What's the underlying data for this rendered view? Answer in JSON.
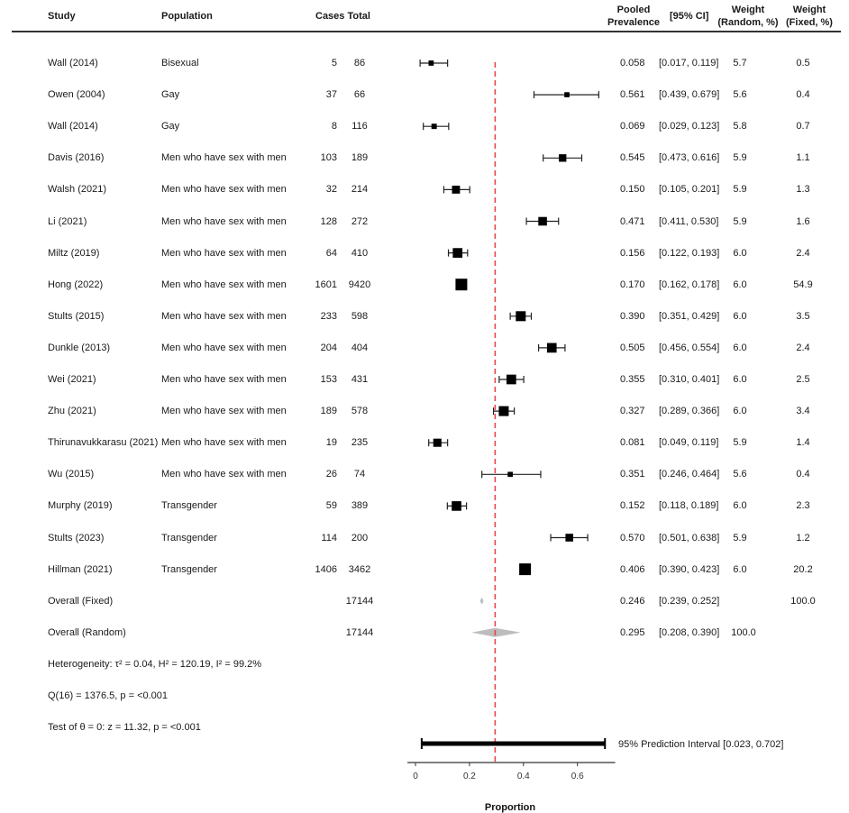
{
  "headers": {
    "study": "Study",
    "population": "Population",
    "cases_total": "Cases Total",
    "pooled_1": "Pooled",
    "pooled_2": "Prevalence",
    "ci": "[95% CI]",
    "wr_1": "Weight",
    "wr_2": "(Random, %)",
    "wf_1": "Weight",
    "wf_2": "(Fixed, %)"
  },
  "colors": {
    "reference_line": "#e8474c",
    "marker": "#000000",
    "summary_diamond": "#bdbdbd"
  },
  "studies": [
    {
      "study": "Wall (2014)",
      "population": "Bisexual",
      "cases": "5",
      "total": "86",
      "prev": "0.058",
      "ci": "[0.017, 0.119]",
      "w_random": "5.7",
      "w_fixed": "0.5"
    },
    {
      "study": "Owen (2004)",
      "population": "Gay",
      "cases": "37",
      "total": "66",
      "prev": "0.561",
      "ci": "[0.439, 0.679]",
      "w_random": "5.6",
      "w_fixed": "0.4"
    },
    {
      "study": "Wall (2014)",
      "population": "Gay",
      "cases": "8",
      "total": "116",
      "prev": "0.069",
      "ci": "[0.029, 0.123]",
      "w_random": "5.8",
      "w_fixed": "0.7"
    },
    {
      "study": "Davis (2016)",
      "population": "Men who have sex with men",
      "cases": "103",
      "total": "189",
      "prev": "0.545",
      "ci": "[0.473, 0.616]",
      "w_random": "5.9",
      "w_fixed": "1.1"
    },
    {
      "study": "Walsh (2021)",
      "population": "Men who have sex with men",
      "cases": "32",
      "total": "214",
      "prev": "0.150",
      "ci": "[0.105, 0.201]",
      "w_random": "5.9",
      "w_fixed": "1.3"
    },
    {
      "study": "Li (2021)",
      "population": "Men who have sex with men",
      "cases": "128",
      "total": "272",
      "prev": "0.471",
      "ci": "[0.411, 0.530]",
      "w_random": "5.9",
      "w_fixed": "1.6"
    },
    {
      "study": "Miltz (2019)",
      "population": "Men who have sex with men",
      "cases": "64",
      "total": "410",
      "prev": "0.156",
      "ci": "[0.122, 0.193]",
      "w_random": "6.0",
      "w_fixed": "2.4"
    },
    {
      "study": "Hong (2022)",
      "population": "Men who have sex with men",
      "cases": "1601",
      "total": "9420",
      "prev": "0.170",
      "ci": "[0.162, 0.178]",
      "w_random": "6.0",
      "w_fixed": "54.9"
    },
    {
      "study": "Stults (2015)",
      "population": "Men who have sex with men",
      "cases": "233",
      "total": "598",
      "prev": "0.390",
      "ci": "[0.351, 0.429]",
      "w_random": "6.0",
      "w_fixed": "3.5"
    },
    {
      "study": "Dunkle (2013)",
      "population": "Men who have sex with men",
      "cases": "204",
      "total": "404",
      "prev": "0.505",
      "ci": "[0.456, 0.554]",
      "w_random": "6.0",
      "w_fixed": "2.4"
    },
    {
      "study": "Wei (2021)",
      "population": "Men who have sex with men",
      "cases": "153",
      "total": "431",
      "prev": "0.355",
      "ci": "[0.310, 0.401]",
      "w_random": "6.0",
      "w_fixed": "2.5"
    },
    {
      "study": "Zhu (2021)",
      "population": "Men who have sex with men",
      "cases": "189",
      "total": "578",
      "prev": "0.327",
      "ci": "[0.289, 0.366]",
      "w_random": "6.0",
      "w_fixed": "3.4"
    },
    {
      "study": "Thirunavukkarasu (2021)",
      "population": "Men who have sex with men",
      "cases": "19",
      "total": "235",
      "prev": "0.081",
      "ci": "[0.049, 0.119]",
      "w_random": "5.9",
      "w_fixed": "1.4"
    },
    {
      "study": "Wu (2015)",
      "population": "Men who have sex with men",
      "cases": "26",
      "total": "74",
      "prev": "0.351",
      "ci": "[0.246, 0.464]",
      "w_random": "5.6",
      "w_fixed": "0.4"
    },
    {
      "study": "Murphy (2019)",
      "population": "Transgender",
      "cases": "59",
      "total": "389",
      "prev": "0.152",
      "ci": "[0.118, 0.189]",
      "w_random": "6.0",
      "w_fixed": "2.3"
    },
    {
      "study": "Stults (2023)",
      "population": "Transgender",
      "cases": "114",
      "total": "200",
      "prev": "0.570",
      "ci": "[0.501, 0.638]",
      "w_random": "5.9",
      "w_fixed": "1.2"
    },
    {
      "study": "Hillman (2021)",
      "population": "Transgender",
      "cases": "1406",
      "total": "3462",
      "prev": "0.406",
      "ci": "[0.390, 0.423]",
      "w_random": "6.0",
      "w_fixed": "20.2"
    }
  ],
  "overall": [
    {
      "study": "Overall (Fixed)",
      "total": "17144",
      "prev": "0.246",
      "ci": "[0.239, 0.252]",
      "w_random": "",
      "w_fixed": "100.0"
    },
    {
      "study": "Overall (Random)",
      "total": "17144",
      "prev": "0.295",
      "ci": "[0.208, 0.390]",
      "w_random": "100.0",
      "w_fixed": ""
    }
  ],
  "stats": {
    "heterogeneity": "Heterogeneity: τ² = 0.04, H² = 120.19, I² = 99.2%",
    "q_test": "Q(16) = 1376.5, p = <0.001",
    "theta_test": "Test of θ = 0: z = 11.32, p = <0.001"
  },
  "prediction_interval_label": "95% Prediction Interval [0.023, 0.702]",
  "chart_data": {
    "type": "forest",
    "xlabel": "Proportion",
    "xlim": [
      -0.03,
      0.74
    ],
    "xticks": [
      0,
      0.2,
      0.4,
      0.6
    ],
    "xtick_labels": [
      "0",
      "0.2",
      "0.4",
      "0.6"
    ],
    "reference_line": 0.295,
    "points": [
      {
        "label": "Wall (2014) Bisexual",
        "est": 0.058,
        "lo": 0.017,
        "hi": 0.119,
        "w_fixed": 0.5
      },
      {
        "label": "Owen (2004)",
        "est": 0.561,
        "lo": 0.439,
        "hi": 0.679,
        "w_fixed": 0.4
      },
      {
        "label": "Wall (2014) Gay",
        "est": 0.069,
        "lo": 0.029,
        "hi": 0.123,
        "w_fixed": 0.7
      },
      {
        "label": "Davis (2016)",
        "est": 0.545,
        "lo": 0.473,
        "hi": 0.616,
        "w_fixed": 1.1
      },
      {
        "label": "Walsh (2021)",
        "est": 0.15,
        "lo": 0.105,
        "hi": 0.201,
        "w_fixed": 1.3
      },
      {
        "label": "Li (2021)",
        "est": 0.471,
        "lo": 0.411,
        "hi": 0.53,
        "w_fixed": 1.6
      },
      {
        "label": "Miltz (2019)",
        "est": 0.156,
        "lo": 0.122,
        "hi": 0.193,
        "w_fixed": 2.4
      },
      {
        "label": "Hong (2022)",
        "est": 0.17,
        "lo": 0.162,
        "hi": 0.178,
        "w_fixed": 54.9
      },
      {
        "label": "Stults (2015)",
        "est": 0.39,
        "lo": 0.351,
        "hi": 0.429,
        "w_fixed": 3.5
      },
      {
        "label": "Dunkle (2013)",
        "est": 0.505,
        "lo": 0.456,
        "hi": 0.554,
        "w_fixed": 2.4
      },
      {
        "label": "Wei (2021)",
        "est": 0.355,
        "lo": 0.31,
        "hi": 0.401,
        "w_fixed": 2.5
      },
      {
        "label": "Zhu (2021)",
        "est": 0.327,
        "lo": 0.289,
        "hi": 0.366,
        "w_fixed": 3.4
      },
      {
        "label": "Thirunavukkarasu (2021)",
        "est": 0.081,
        "lo": 0.049,
        "hi": 0.119,
        "w_fixed": 1.4
      },
      {
        "label": "Wu (2015)",
        "est": 0.351,
        "lo": 0.246,
        "hi": 0.464,
        "w_fixed": 0.4
      },
      {
        "label": "Murphy (2019)",
        "est": 0.152,
        "lo": 0.118,
        "hi": 0.189,
        "w_fixed": 2.3
      },
      {
        "label": "Stults (2023)",
        "est": 0.57,
        "lo": 0.501,
        "hi": 0.638,
        "w_fixed": 1.2
      },
      {
        "label": "Hillman (2021)",
        "est": 0.406,
        "lo": 0.39,
        "hi": 0.423,
        "w_fixed": 20.2
      }
    ],
    "summaries": [
      {
        "label": "Overall (Fixed)",
        "est": 0.246,
        "lo": 0.239,
        "hi": 0.252
      },
      {
        "label": "Overall (Random)",
        "est": 0.295,
        "lo": 0.208,
        "hi": 0.39
      }
    ],
    "prediction_interval": {
      "lo": 0.023,
      "hi": 0.702
    }
  }
}
